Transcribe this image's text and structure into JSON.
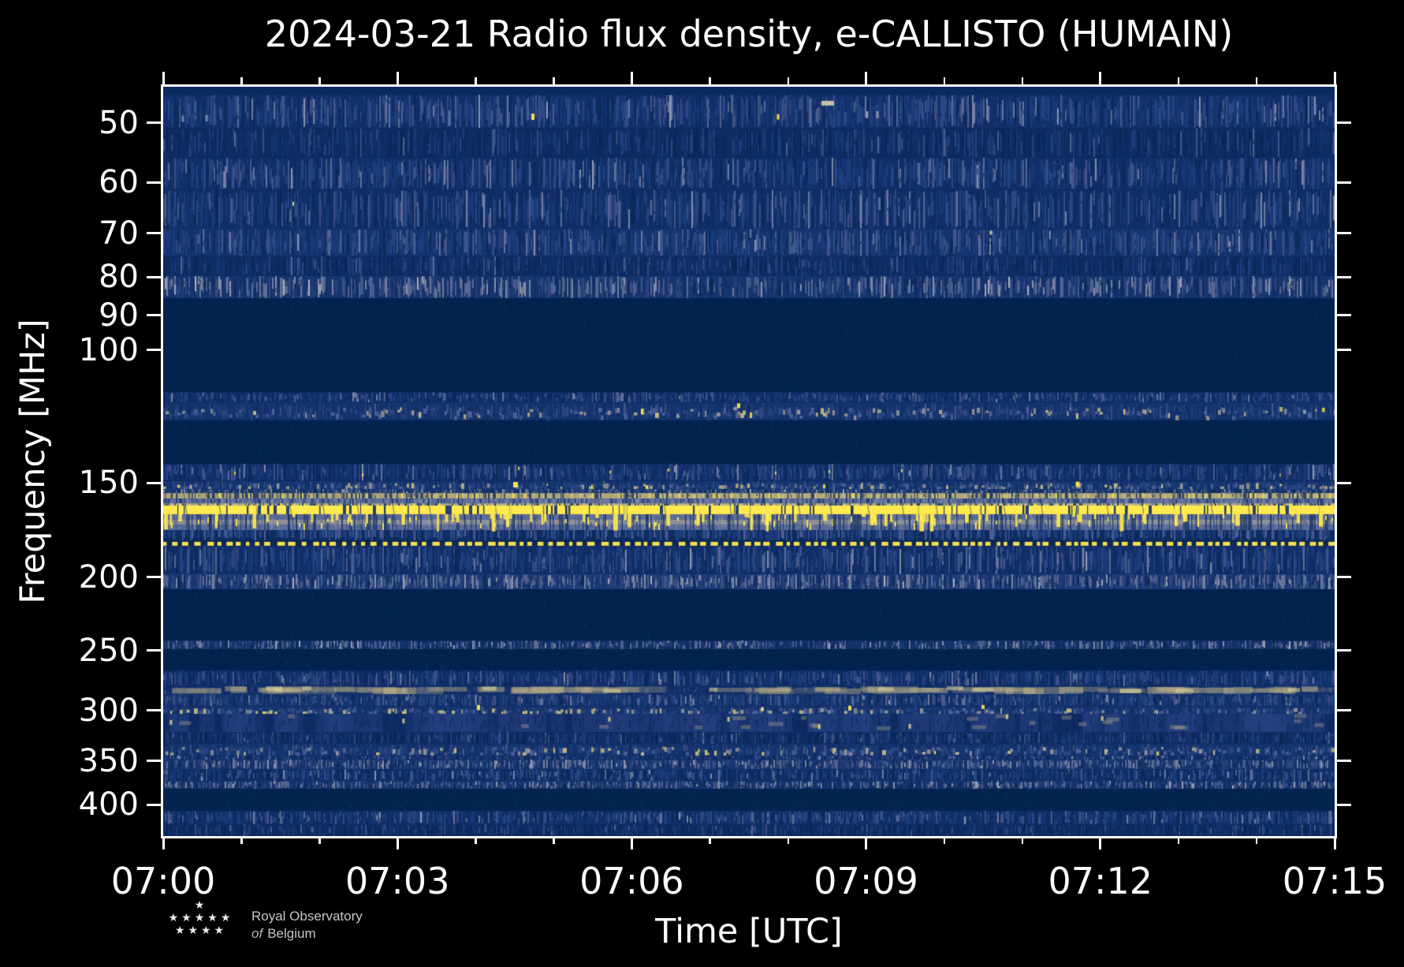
{
  "chart_data": {
    "type": "heatmap",
    "title": "2024-03-21 Radio flux density, e-CALLISTO (HUMAIN)",
    "xlabel": "Time [UTC]",
    "ylabel": "Frequency [MHz]",
    "x_range": [
      "07:00",
      "07:15"
    ],
    "x_ticks_major": [
      "07:00",
      "07:03",
      "07:06",
      "07:09",
      "07:12",
      "07:15"
    ],
    "x_ticks_major_minutes": [
      0,
      3,
      6,
      9,
      12,
      15
    ],
    "x_ticks_minor_minutes": [
      1,
      2,
      4,
      5,
      7,
      8,
      10,
      11,
      13,
      14
    ],
    "y_scale": "log",
    "y_range_mhz": [
      44.8,
      440.3
    ],
    "y_ticks_mhz": [
      50,
      60,
      70,
      80,
      90,
      100,
      150,
      200,
      250,
      300,
      350,
      400
    ],
    "axis_color": "#ffffff",
    "background_color": "#000000",
    "colormap": {
      "low": "#03224e",
      "mid": "#1d3d7e",
      "high": "#ffe94f"
    },
    "palettes": {
      "blue": [
        [
          "#0b2858",
          2
        ],
        [
          "#1c3c7c",
          4
        ],
        [
          "#2e4a88",
          3
        ],
        [
          "#49598f",
          2
        ],
        [
          "#6f7ba3",
          0.8
        ],
        [
          "#969cb3",
          0.3
        ]
      ],
      "bluedim": [
        [
          "#0a2554",
          3
        ],
        [
          "#16336e",
          4
        ],
        [
          "#234080",
          2.5
        ],
        [
          "#3b4e88",
          1.2
        ],
        [
          "#5d6c9c",
          0.4
        ]
      ],
      "gray": [
        [
          "#16336e",
          2
        ],
        [
          "#33487f",
          2
        ],
        [
          "#5f6d99",
          2.4
        ],
        [
          "#8d93a8",
          1.6
        ],
        [
          "#aeb2bd",
          0.5
        ],
        [
          "#0b2858",
          1.2
        ]
      ],
      "speck": [
        [
          "#2a4684",
          3
        ],
        [
          "#54639a",
          2
        ],
        [
          "#9c9a94",
          1.4
        ],
        [
          "#c9bd82",
          1.0
        ]
      ],
      "tanmk": [
        [
          "#d8cf97",
          2
        ],
        [
          "#97906f",
          2
        ],
        [
          "#0f2c64",
          1.6
        ],
        [
          "#ffe94f",
          0.4
        ]
      ],
      "strk": [
        [
          "#7e89ab",
          2
        ],
        [
          "#8f98b4",
          1
        ],
        [
          "#46578d",
          2
        ],
        [
          "#39497f",
          1
        ]
      ],
      "cols": [
        [
          "#1d3d7e",
          3
        ],
        [
          "#35508c",
          2
        ],
        [
          "#56659a",
          1
        ],
        [
          "#123066",
          2
        ]
      ]
    },
    "bands": [
      {
        "f": [
          44.8,
          45.9
        ],
        "style": "base",
        "base": "#0a2a5e"
      },
      {
        "f": [
          45.9,
          50.8
        ],
        "style": "noise",
        "base": "#122f6a",
        "d": 0.95,
        "pal": "blue"
      },
      {
        "f": [
          50.8,
          55.6
        ],
        "style": "noise",
        "base": "#0e2b62",
        "d": 0.72,
        "pal": "bluedim"
      },
      {
        "f": [
          55.6,
          61.3
        ],
        "style": "noise",
        "base": "#112e68",
        "d": 0.9,
        "pal": "blue"
      },
      {
        "f": [
          61.3,
          69.1
        ],
        "style": "noise",
        "base": "#102d66",
        "d": 0.85,
        "pal": "blue"
      },
      {
        "f": [
          69.1,
          75.1
        ],
        "style": "noise",
        "base": "#15336e",
        "d": 0.95,
        "pal": "blue"
      },
      {
        "f": [
          75.1,
          79.8
        ],
        "style": "noise",
        "base": "#0f2c64",
        "d": 0.8,
        "pal": "bluedim"
      },
      {
        "f": [
          79.8,
          85.4
        ],
        "style": "noise",
        "base": "#16356f",
        "d": 0.95,
        "pal": "gray"
      },
      {
        "f": [
          85.4,
          113.7
        ],
        "style": "quiet",
        "base": "#03224e"
      },
      {
        "f": [
          113.7,
          117.3
        ],
        "style": "noise",
        "base": "#112e68",
        "d": 0.85,
        "pal": "blue"
      },
      {
        "f": [
          117.3,
          123.9
        ],
        "style": "speckle",
        "base": "#14326c",
        "yellow": 0.06
      },
      {
        "f": [
          123.9,
          141.5
        ],
        "style": "quiet",
        "base": "#03224e"
      },
      {
        "f": [
          141.5,
          149.0
        ],
        "style": "noise",
        "base": "#112e68",
        "d": 0.9,
        "pal": "blue",
        "ydot": 0.02
      },
      {
        "f": [
          149.0,
          152.8
        ],
        "style": "speckle",
        "base": "#15346e",
        "yellow": 0.14
      },
      {
        "f": [
          152.8,
          154.7
        ],
        "style": "noise",
        "base": "#1a3873",
        "d": 0.95,
        "pal": "gray"
      },
      {
        "f": [
          154.7,
          157.3
        ],
        "style": "tan",
        "base": "#b2a97c"
      },
      {
        "f": [
          157.3,
          159.6
        ],
        "style": "graymix",
        "base": "#5f6d99"
      },
      {
        "f": [
          159.6,
          160.7
        ],
        "style": "paler",
        "base": "#b7b28b"
      },
      {
        "f": [
          160.7,
          165.0
        ],
        "style": "solidyellow",
        "base": "#ffe94f"
      },
      {
        "f": [
          165.0,
          173.2
        ],
        "style": "graystreak",
        "base": "#5c6b97",
        "tanrow": [
          167.8,
          170.2
        ]
      },
      {
        "f": [
          173.2,
          179.0
        ],
        "style": "bluecols",
        "base": "#0d2a5c"
      },
      {
        "f": [
          179.4,
          181.7
        ],
        "style": "dotted",
        "base": "#0d2a5c",
        "dot": "#ffe94f"
      },
      {
        "f": [
          181.7,
          198.1
        ],
        "style": "noise",
        "base": "#112e68",
        "d": 0.9,
        "pal": "blue"
      },
      {
        "f": [
          198.1,
          207.4
        ],
        "style": "noise",
        "base": "#1d3b76",
        "d": 1.0,
        "pal": "gray"
      },
      {
        "f": [
          207.4,
          242.5
        ],
        "style": "quiet",
        "base": "#03224e"
      },
      {
        "f": [
          242.5,
          249.1
        ],
        "style": "noise",
        "base": "#143169",
        "d": 0.85,
        "pal": "gray"
      },
      {
        "f": [
          249.1,
          265.7
        ],
        "style": "quiet",
        "base": "#03224e"
      },
      {
        "f": [
          265.7,
          278.8
        ],
        "style": "noise",
        "base": "#112e68",
        "d": 0.9,
        "pal": "blue"
      },
      {
        "f": [
          278.8,
          285.6
        ],
        "style": "smudge",
        "base": "#112e68"
      },
      {
        "f": [
          285.6,
          296.2
        ],
        "style": "noise",
        "base": "#15336e",
        "d": 0.95,
        "pal": "blue"
      },
      {
        "f": [
          296.2,
          303.3
        ],
        "style": "speckle",
        "base": "#14326c",
        "yellow": 0.08
      },
      {
        "f": [
          303.3,
          320.6
        ],
        "style": "bluesmudge",
        "base": "#0e2b62"
      },
      {
        "f": [
          320.6,
          332.4
        ],
        "style": "noise",
        "base": "#0f2c64",
        "d": 0.95,
        "pal": "bluedim"
      },
      {
        "f": [
          332.4,
          344.5
        ],
        "style": "speckle",
        "base": "#14326c",
        "yellow": 0.07
      },
      {
        "f": [
          344.5,
          348.7
        ],
        "style": "noise",
        "base": "#112e68",
        "d": 0.85,
        "pal": "blue"
      },
      {
        "f": [
          348.7,
          358.9
        ],
        "style": "noise",
        "base": "#1a3873",
        "d": 0.95,
        "pal": "gray"
      },
      {
        "f": [
          358.9,
          372.2
        ],
        "style": "noise",
        "base": "#102d66",
        "d": 0.85,
        "pal": "blue"
      },
      {
        "f": [
          372.2,
          381.2
        ],
        "style": "noise",
        "base": "#173570",
        "d": 0.9,
        "pal": "gray"
      },
      {
        "f": [
          381.2,
          407.7
        ],
        "style": "quiet2",
        "base": "#04244f"
      },
      {
        "f": [
          407.7,
          424.7
        ],
        "style": "noise",
        "base": "#112e68",
        "d": 0.9,
        "pal": "blue"
      },
      {
        "f": [
          424.7,
          440.3
        ],
        "style": "noise",
        "base": "#0e2b62",
        "d": 0.8,
        "pal": "bluedim"
      }
    ],
    "overlays": {
      "diagonals": {
        "f0": 141.5,
        "f1": 176.0,
        "spacing": 38,
        "dx": 14,
        "color": "#0d2a5c",
        "alpha": 0.45
      },
      "yellow_streaks": {
        "f_top": 160.7,
        "f_end_min": 166,
        "f_end_max": 174,
        "count": 64,
        "color": "#ffe94f"
      },
      "events": [
        {
          "x": 469,
          "f": 49.1,
          "c": "#ffe94f",
          "w": 4,
          "h": 8
        },
        {
          "x": 780,
          "f": 49.1,
          "c": "#ffe94f",
          "w": 3,
          "h": 7
        },
        {
          "x": 843,
          "f": 47.1,
          "c": "#cfc9ad",
          "w": 16,
          "h": 6
        },
        {
          "x": 893,
          "f": 48.8,
          "c": "#9aa0b5",
          "w": 3,
          "h": 9
        },
        {
          "x": 906,
          "f": 48.8,
          "c": "#8a93ad",
          "w": 3,
          "h": 9
        },
        {
          "x": 25,
          "f": 49.4,
          "c": "#7f89a5",
          "w": 3,
          "h": 8
        },
        {
          "x": 55,
          "f": 49.3,
          "c": "#7f89a5",
          "w": 3,
          "h": 8
        },
        {
          "x": 165,
          "f": 64.0,
          "c": "#e6d98a",
          "w": 2,
          "h": 5
        },
        {
          "x": 1050,
          "f": 69.9,
          "c": "#d8cf9a",
          "w": 3,
          "h": 5
        },
        {
          "x": 730,
          "f": 118.5,
          "c": "#ffe34d",
          "w": 4,
          "h": 6
        },
        {
          "x": 447,
          "f": 150.8,
          "c": "#ffe94f",
          "w": 6,
          "h": 7
        },
        {
          "x": 1160,
          "f": 150.5,
          "c": "#ffe94f",
          "w": 5,
          "h": 6
        },
        {
          "x": 400,
          "f": 297.5,
          "c": "#ffe94f",
          "w": 4,
          "h": 6
        },
        {
          "x": 871,
          "f": 298.0,
          "c": "#ffe94f",
          "w": 4,
          "h": 6
        },
        {
          "x": 1040,
          "f": 297.0,
          "c": "#f3e06a",
          "w": 4,
          "h": 5
        },
        {
          "x": 760,
          "f": 299.0,
          "c": "#e8d87f",
          "w": 4,
          "h": 5
        }
      ]
    }
  },
  "logo": {
    "line1": "Royal Observatory",
    "line2_word": "of",
    "line2_rest": "Belgium",
    "stars_rows": [
      1,
      5,
      4
    ],
    "star_glyph": "★"
  }
}
